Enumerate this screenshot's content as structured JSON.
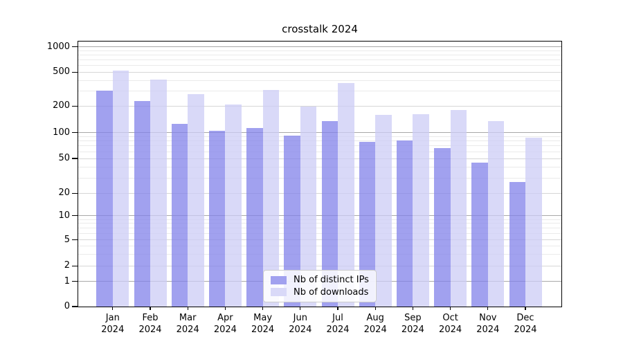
{
  "title": "crosstalk 2024",
  "legend": {
    "items": [
      {
        "label": "Nb of distinct IPs",
        "color": "#a1a1ef"
      },
      {
        "label": "Nb of downloads",
        "color": "#d9d9f8"
      }
    ]
  },
  "chart_data": {
    "type": "bar",
    "title": "crosstalk 2024",
    "categories": [
      "Jan",
      "Feb",
      "Mar",
      "Apr",
      "May",
      "Jun",
      "Jul",
      "Aug",
      "Sep",
      "Oct",
      "Nov",
      "Dec"
    ],
    "x_year_label": "2024",
    "series": [
      {
        "name": "Nb of distinct IPs",
        "color": "#a1a1ef",
        "values": [
          305,
          230,
          125,
          105,
          112,
          93,
          135,
          78,
          81,
          66,
          45,
          27
        ]
      },
      {
        "name": "Nb of downloads",
        "color": "#d9d9f8",
        "values": [
          525,
          410,
          275,
          210,
          310,
          196,
          370,
          158,
          163,
          181,
          135,
          88
        ]
      }
    ],
    "yticks": [
      0,
      1,
      2,
      5,
      10,
      20,
      50,
      100,
      200,
      500,
      1000
    ],
    "ylim": [
      0,
      1000
    ],
    "xlabel": "",
    "ylabel": "",
    "scale": "symlog",
    "grid": true,
    "legend_position": "lower center inside"
  }
}
